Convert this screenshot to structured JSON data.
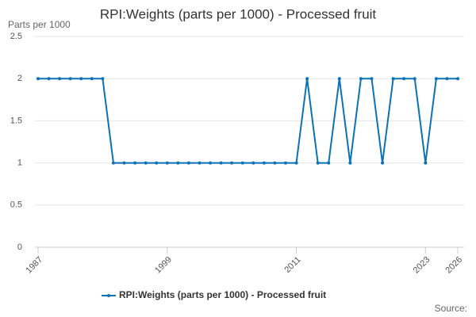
{
  "chart_data": {
    "type": "line",
    "title": "RPI:Weights (parts per 1000) - Processed fruit",
    "y_label": "Parts per 1000",
    "source": "Source:",
    "x": [
      1987,
      1988,
      1989,
      1990,
      1991,
      1992,
      1993,
      1994,
      1995,
      1996,
      1997,
      1998,
      1999,
      2000,
      2001,
      2002,
      2003,
      2004,
      2005,
      2006,
      2007,
      2008,
      2009,
      2010,
      2011,
      2012,
      2013,
      2014,
      2015,
      2016,
      2017,
      2018,
      2019,
      2020,
      2021,
      2022,
      2023,
      2024,
      2025,
      2026
    ],
    "series": [
      {
        "name": "RPI:Weights (parts per 1000) - Processed fruit",
        "color": "#0b72b5",
        "values": [
          2,
          2,
          2,
          2,
          2,
          2,
          2,
          1,
          1,
          1,
          1,
          1,
          1,
          1,
          1,
          1,
          1,
          1,
          1,
          1,
          1,
          1,
          1,
          1,
          1,
          2,
          1,
          1,
          2,
          1,
          2,
          2,
          1,
          2,
          2,
          2,
          1,
          2,
          2,
          2
        ]
      }
    ],
    "xlim": [
      1987,
      2026
    ],
    "xticks": [
      1987,
      1999,
      2011,
      2023,
      2026
    ],
    "ylim": [
      0,
      2.5
    ],
    "yticks": [
      0,
      0.5,
      1,
      1.5,
      2,
      2.5
    ],
    "grid": true
  }
}
